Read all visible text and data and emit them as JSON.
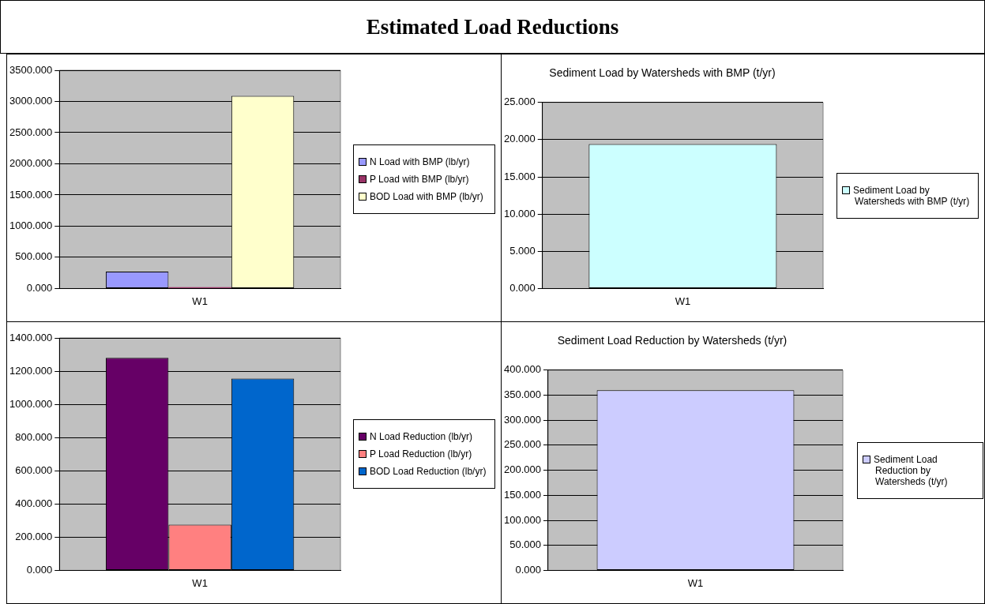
{
  "chart_data": [
    {
      "type": "other",
      "title": "Estimated Load Reductions"
    },
    {
      "type": "bar",
      "categories": [
        "W1"
      ],
      "legend": "right",
      "grid": "y",
      "series": [
        {
          "name": "N Load with BMP (lb/yr)",
          "color": "#9999ff",
          "values": [
            270
          ]
        },
        {
          "name": "P Load with BMP (lb/yr)",
          "color": "#993366",
          "values": [
            20
          ]
        },
        {
          "name": "BOD Load with BMP (lb/yr)",
          "color": "#ffffcc",
          "values": [
            3090
          ]
        }
      ],
      "ylim": [
        0,
        3500
      ],
      "yticks": [
        {
          "value": 0,
          "label": "0.000"
        },
        {
          "value": 500,
          "label": "500.000"
        },
        {
          "value": 1000,
          "label": "1000.000"
        },
        {
          "value": 1500,
          "label": "1500.000"
        },
        {
          "value": 2000,
          "label": "2000.000"
        },
        {
          "value": 2500,
          "label": "2500.000"
        },
        {
          "value": 3000,
          "label": "3000.000"
        },
        {
          "value": 3500,
          "label": "3500.000"
        }
      ]
    },
    {
      "type": "bar",
      "title": "Sediment Load by Watersheds with BMP (t/yr)",
      "categories": [
        "W1"
      ],
      "legend": "right",
      "grid": "y",
      "series": [
        {
          "name": "Sediment Load by Watersheds with BMP (t/yr)",
          "color": "#ccffff",
          "values": [
            19.4
          ]
        }
      ],
      "ylim": [
        0,
        25
      ],
      "yticks": [
        {
          "value": 0,
          "label": "0.000"
        },
        {
          "value": 5,
          "label": "5.000"
        },
        {
          "value": 10,
          "label": "10.000"
        },
        {
          "value": 15,
          "label": "15.000"
        },
        {
          "value": 20,
          "label": "20.000"
        },
        {
          "value": 25,
          "label": "25.000"
        }
      ]
    },
    {
      "type": "bar",
      "categories": [
        "W1"
      ],
      "legend": "right",
      "grid": "y",
      "series": [
        {
          "name": "N Load Reduction (lb/yr)",
          "color": "#660066",
          "values": [
            1280
          ]
        },
        {
          "name": "P Load Reduction (lb/yr)",
          "color": "#ff8080",
          "values": [
            275
          ]
        },
        {
          "name": "BOD Load Reduction (lb/yr)",
          "color": "#0066cc",
          "values": [
            1155
          ]
        }
      ],
      "ylim": [
        0,
        1400
      ],
      "yticks": [
        {
          "value": 0,
          "label": "0.000"
        },
        {
          "value": 200,
          "label": "200.000"
        },
        {
          "value": 400,
          "label": "400.000"
        },
        {
          "value": 600,
          "label": "600.000"
        },
        {
          "value": 800,
          "label": "800.000"
        },
        {
          "value": 1000,
          "label": "1000.000"
        },
        {
          "value": 1200,
          "label": "1200.000"
        },
        {
          "value": 1400,
          "label": "1400.000"
        }
      ]
    },
    {
      "type": "bar",
      "title": "Sediment Load Reduction by Watersheds (t/yr)",
      "categories": [
        "W1"
      ],
      "legend": "right",
      "grid": "y",
      "series": [
        {
          "name": "Sediment Load Reduction by Watersheds (t/yr)",
          "color": "#ccccff",
          "values": [
            360
          ]
        }
      ],
      "ylim": [
        0,
        400
      ],
      "yticks": [
        {
          "value": 0,
          "label": "0.000"
        },
        {
          "value": 50,
          "label": "50.000"
        },
        {
          "value": 100,
          "label": "100.000"
        },
        {
          "value": 150,
          "label": "150.000"
        },
        {
          "value": 200,
          "label": "200.000"
        },
        {
          "value": 250,
          "label": "250.000"
        },
        {
          "value": 300,
          "label": "300.000"
        },
        {
          "value": 350,
          "label": "350.000"
        },
        {
          "value": 400,
          "label": "400.000"
        }
      ]
    }
  ]
}
